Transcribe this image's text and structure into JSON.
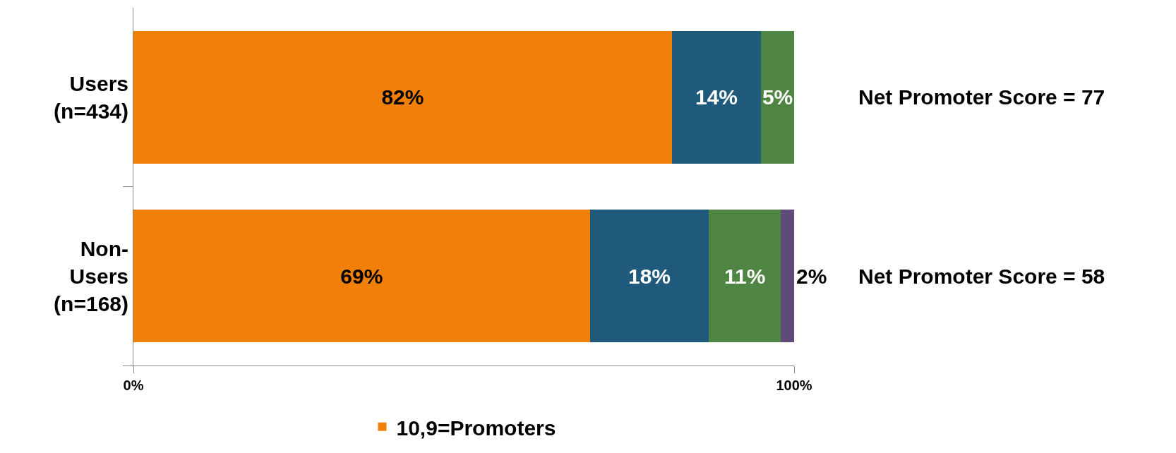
{
  "chart_data": {
    "type": "bar",
    "orientation": "horizontal",
    "stacked": true,
    "categories": [
      "Users\n(n=434)",
      "Non-\nUsers\n(n=168)"
    ],
    "series": [
      {
        "name": "10,9=Promoters",
        "color": "#f0800a",
        "values": [
          81.5,
          69.1
        ],
        "value_labels": [
          "82%",
          "69%"
        ]
      },
      {
        "color": "#1f5a7c",
        "values": [
          13.5,
          18.0
        ],
        "value_labels": [
          "14%",
          "18%"
        ]
      },
      {
        "color": "#4e8542",
        "values": [
          5.0,
          10.9
        ],
        "value_labels": [
          "5%",
          "11%"
        ]
      },
      {
        "color": "#5e4b7a",
        "values": [
          null,
          2.0
        ],
        "value_labels": [
          null,
          "2%"
        ]
      }
    ],
    "xlim": [
      0,
      100
    ],
    "xticks": [
      {
        "value": 0,
        "label": "0%"
      },
      {
        "value": 100,
        "label": "100%"
      }
    ],
    "legend": "bottom",
    "annotations": [
      "Net Promoter Score = 77",
      "Net Promoter Score = 58"
    ]
  }
}
